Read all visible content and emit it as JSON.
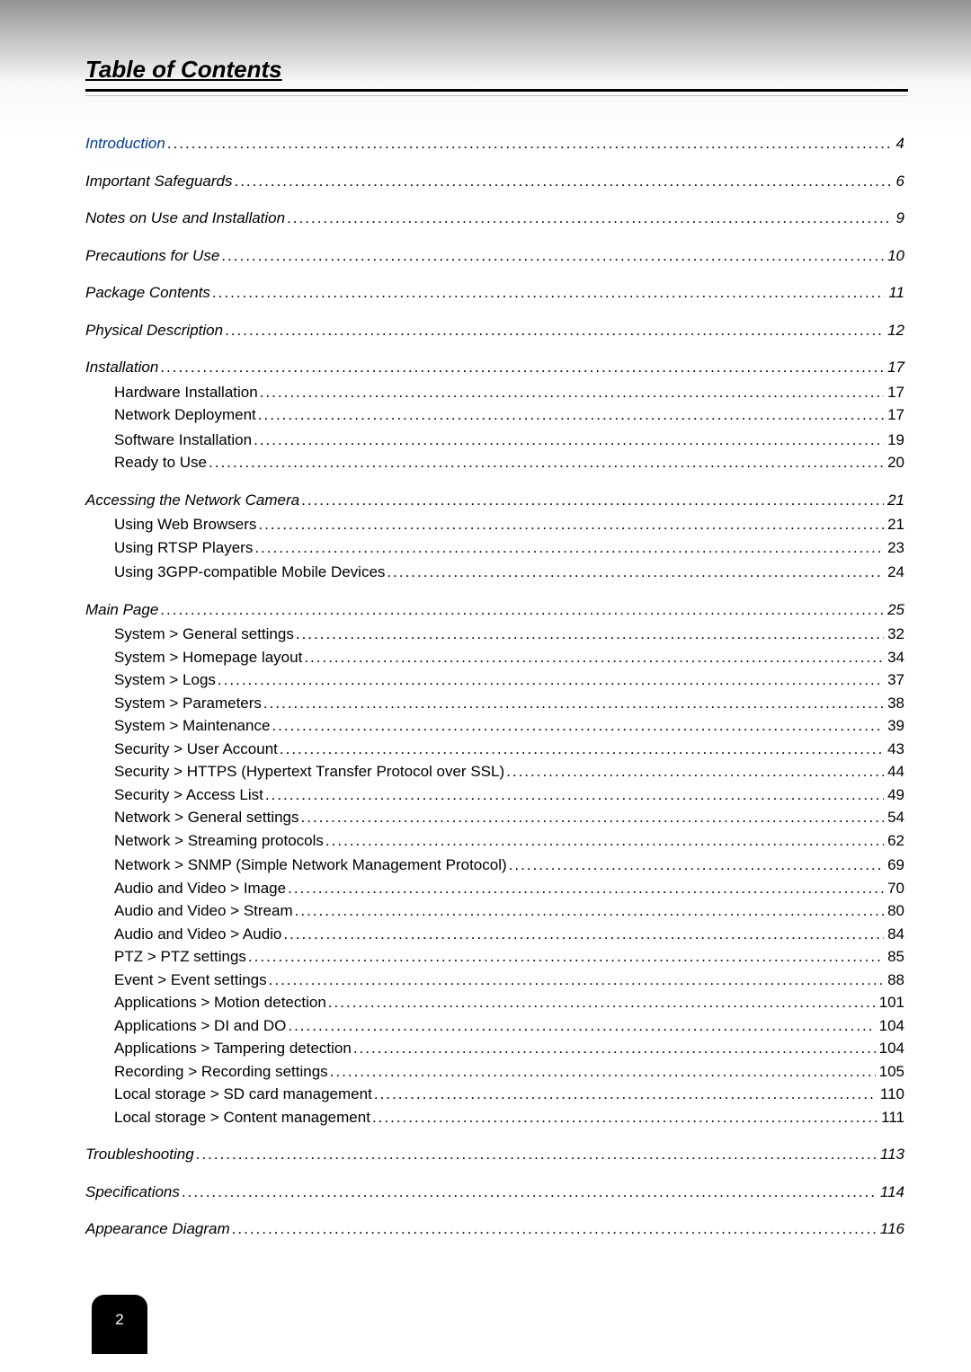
{
  "title": "Table of Contents",
  "pageNumber": "2",
  "entries": [
    {
      "label": "Introduction",
      "page": "4",
      "level": 0,
      "link": true,
      "first": true
    },
    {
      "label": "Important Safeguards",
      "page": "6",
      "level": 0
    },
    {
      "label": "Notes on Use and Installation",
      "page": "9",
      "level": 0
    },
    {
      "label": "Precautions for Use",
      "page": "10",
      "level": 0
    },
    {
      "label": "Package Contents",
      "page": "11",
      "level": 0
    },
    {
      "label": "Physical Description",
      "page": "12",
      "level": 0
    },
    {
      "label": "Installation",
      "page": "17",
      "level": 0
    },
    {
      "label": "Hardware Installation",
      "page": "17",
      "level": 1
    },
    {
      "label": "Network Deployment",
      "page": "17",
      "level": 1,
      "tight": true
    },
    {
      "label": "Software Installation",
      "page": "19",
      "level": 1
    },
    {
      "label": "Ready to Use",
      "page": "20",
      "level": 1,
      "tight": true
    },
    {
      "label": "Accessing the Network Camera",
      "page": "21",
      "level": 0
    },
    {
      "label": "Using Web Browsers",
      "page": "21",
      "level": 1
    },
    {
      "label": "Using RTSP Players",
      "page": "23",
      "level": 1,
      "tight": true
    },
    {
      "label": "Using 3GPP-compatible Mobile Devices",
      "page": "24",
      "level": 1
    },
    {
      "label": "Main Page",
      "page": "25",
      "level": 0
    },
    {
      "label": "System > General settings",
      "page": "32",
      "level": 1
    },
    {
      "label": "System > Homepage layout ",
      "page": "34",
      "level": 1,
      "tight": true
    },
    {
      "label": "System > Logs",
      "page": "37",
      "level": 1,
      "tight": true
    },
    {
      "label": "System > Parameters ",
      "page": "38",
      "level": 1,
      "tight": true
    },
    {
      "label": "System > Maintenance",
      "page": "39",
      "level": 1,
      "tight": true
    },
    {
      "label": "Security > User Account",
      "page": "43",
      "level": 1,
      "tight": true
    },
    {
      "label": "Security >  HTTPS (Hypertext Transfer Protocol over SSL) ",
      "page": "44",
      "level": 1,
      "tight": true
    },
    {
      "label": "Security >  Access List ",
      "page": "49",
      "level": 1,
      "tight": true
    },
    {
      "label": "Network > General settings",
      "page": "54",
      "level": 1,
      "tight": true
    },
    {
      "label": "Network > Streaming protocols  ",
      "page": "62",
      "level": 1,
      "tight": true
    },
    {
      "label": "Network > SNMP (Simple Network Management Protocol) ",
      "page": "69",
      "level": 1
    },
    {
      "label": "Audio and Video > Image   ",
      "page": "70",
      "level": 1,
      "tight": true
    },
    {
      "label": "Audio and Video > Stream",
      "page": "80",
      "level": 1,
      "tight": true
    },
    {
      "label": "Audio and Video > Audio",
      "page": "84",
      "level": 1,
      "tight": true
    },
    {
      "label": "PTZ > PTZ settings ",
      "page": "85",
      "level": 1,
      "tight": true
    },
    {
      "label": "Event > Event settings",
      "page": "88",
      "level": 1,
      "tight": true
    },
    {
      "label": "Applications > Motion detection",
      "page": "101",
      "level": 1,
      "tight": true
    },
    {
      "label": "Applications > DI and DO  ",
      "page": "104",
      "level": 1,
      "tight": true
    },
    {
      "label": "Applications > Tampering detection ",
      "page": "104",
      "level": 1,
      "tight": true
    },
    {
      "label": "Recording > Recording settings ",
      "page": "105",
      "level": 1,
      "tight": true
    },
    {
      "label": "Local storage > SD card management",
      "page": "110",
      "level": 1,
      "tight": true
    },
    {
      "label": "Local storage > Content management",
      "page": "111",
      "level": 1,
      "tight": true
    },
    {
      "label": "Troubleshooting",
      "page": "113",
      "level": 0
    },
    {
      "label": "Specifications",
      "page": "114",
      "level": 0
    },
    {
      "label": "Appearance Diagram",
      "page": "116",
      "level": 0
    }
  ]
}
